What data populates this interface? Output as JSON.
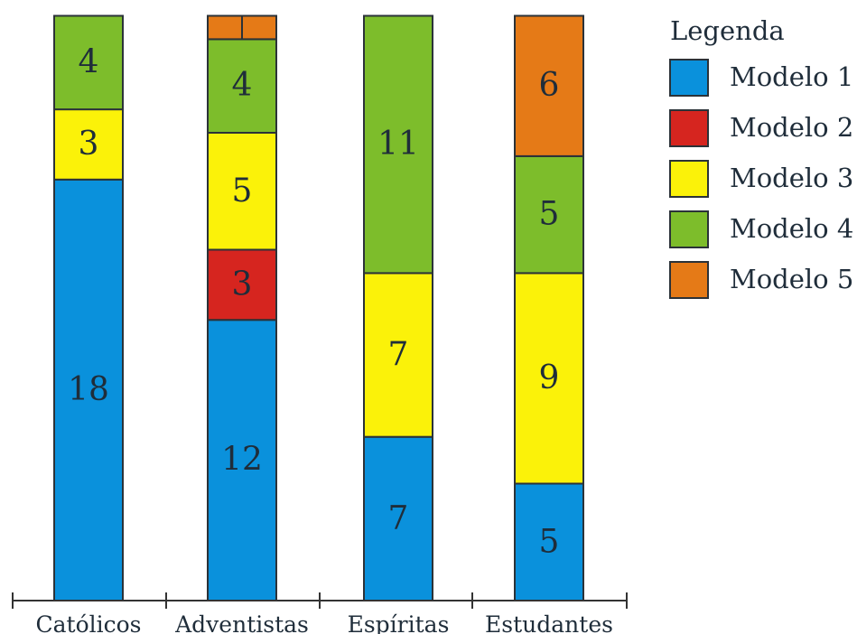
{
  "chart_data": {
    "type": "bar",
    "stacked": true,
    "categories": [
      "Católicos",
      "Adventistas",
      "Espíritas",
      "Estudantes"
    ],
    "series": [
      {
        "name": "Modelo 1",
        "color": "#0a91dc",
        "values": [
          18,
          12,
          7,
          5
        ]
      },
      {
        "name": "Modelo 2",
        "color": "#d6251f",
        "values": [
          0,
          3,
          0,
          0
        ]
      },
      {
        "name": "Modelo 3",
        "color": "#fbf209",
        "values": [
          3,
          5,
          7,
          9
        ]
      },
      {
        "name": "Modelo 4",
        "color": "#7dbd2b",
        "values": [
          4,
          4,
          11,
          5
        ]
      },
      {
        "name": "Modelo 5",
        "color": "#e57a17",
        "values": [
          0,
          1,
          0,
          6
        ]
      }
    ],
    "segment_labels_shown": {
      "Modelo 5": [
        false,
        false,
        false,
        true
      ]
    },
    "legend": {
      "title": "Legenda",
      "position": "top-right"
    },
    "ylim": [
      0,
      25
    ],
    "grid": false,
    "title": "",
    "xlabel": "",
    "ylabel": ""
  }
}
